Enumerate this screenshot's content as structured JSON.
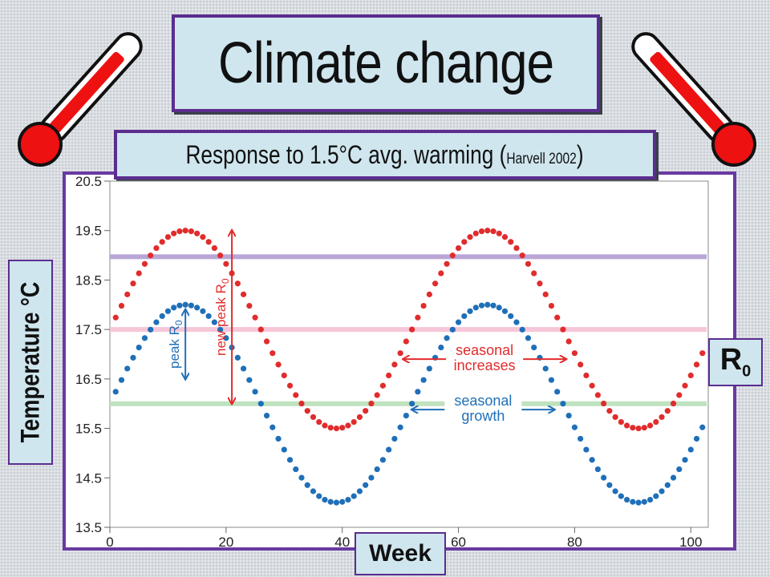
{
  "title": "Climate change",
  "subtitle": {
    "main": "Response to 1.5°C avg. warming (",
    "citation": "Harvell 2002",
    "close": ")"
  },
  "side_label": {
    "main": "R",
    "sub": "0"
  },
  "colors": {
    "warmed": "#e02c2c",
    "baseline": "#1f6fb8",
    "r0_threshold": "#b9a6d6",
    "peak_threshold": "#f6c6d8",
    "growth_threshold": "#bfe2bf",
    "frame": "#5b2d8e",
    "box_fill": "#cfe6ee"
  },
  "icons": [
    "thermometer-icon-left",
    "thermometer-icon-right"
  ],
  "chart_data": {
    "type": "scatter",
    "title": "",
    "xlabel": "Week",
    "ylabel": "Temperature °C",
    "xlim": [
      0,
      103
    ],
    "ylim": [
      13.5,
      20.5
    ],
    "xticks": [
      "0",
      "20",
      "40",
      "60",
      "80",
      "100"
    ],
    "xtick_values": [
      0,
      20,
      40,
      60,
      80,
      100
    ],
    "yticks": [
      "13.5",
      "14.5",
      "15.5",
      "16.5",
      "17.5",
      "18.5",
      "19.5",
      "20.5"
    ],
    "ytick_values": [
      13.5,
      14.5,
      15.5,
      16.5,
      17.5,
      18.5,
      19.5,
      20.5
    ],
    "series": [
      {
        "key": "warmed",
        "mean": 17.5,
        "amplitude": 2.0,
        "period_weeks": 52,
        "peak_week": 13,
        "x_start": 1,
        "x_end": 102,
        "points": 102
      },
      {
        "key": "baseline",
        "mean": 16.0,
        "amplitude": 2.0,
        "period_weeks": 52,
        "peak_week": 13,
        "x_start": 1,
        "x_end": 102,
        "points": 102
      }
    ],
    "thresholds": [
      {
        "key": "r0_threshold",
        "y": 18.97
      },
      {
        "key": "peak_threshold",
        "y": 17.5
      },
      {
        "key": "growth_threshold",
        "y": 16.0
      }
    ],
    "annotations": [
      {
        "key": "new_peak",
        "text": "new peak R",
        "sub": "0",
        "color": "warmed",
        "x": 21,
        "y_from": 16.0,
        "y_to": 19.5
      },
      {
        "key": "peak",
        "text": "peak R",
        "sub": "0",
        "color": "baseline",
        "x": 13,
        "y_from": 16.5,
        "y_to": 17.9
      },
      {
        "key": "seasonal_increases",
        "lines": [
          "seasonal",
          "increases"
        ],
        "color": "warmed",
        "x_from": 50.5,
        "x_to": 78.5,
        "y": 16.9
      },
      {
        "key": "seasonal_growth",
        "lines": [
          "seasonal",
          "growth"
        ],
        "color": "baseline",
        "x_from": 52,
        "x_to": 76.5,
        "y": 15.88
      }
    ]
  }
}
